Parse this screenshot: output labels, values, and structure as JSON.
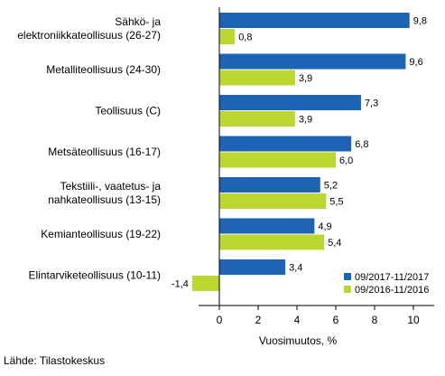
{
  "chart_data": {
    "type": "bar",
    "orientation": "horizontal",
    "categories": [
      [
        "Sähkö- ja",
        "elektroniikkateollisuus (26-27)"
      ],
      [
        "Metalliteollisuus (24-30)"
      ],
      [
        "Teollisuus (C)"
      ],
      [
        "Metsäteollisuus (16-17)"
      ],
      [
        "Tekstiili-, vaatetus- ja",
        "nahkateollisuus (13-15)"
      ],
      [
        "Kemianteollisuus (19-22)"
      ],
      [
        "Elintarviketeollisuus (10-11)"
      ]
    ],
    "series": [
      {
        "name": "09/2017-11/2017",
        "color": "#1f64b4",
        "values": [
          9.8,
          9.6,
          7.3,
          6.8,
          5.2,
          4.9,
          3.4
        ],
        "labels": [
          "9,8",
          "9,6",
          "7,3",
          "6,8",
          "5,2",
          "4,9",
          "3,4"
        ]
      },
      {
        "name": "09/2016-11/2016",
        "color": "#bcd632",
        "values": [
          0.8,
          3.9,
          3.9,
          6.0,
          5.5,
          5.4,
          -1.4
        ],
        "labels": [
          "0,8",
          "3,9",
          "3,9",
          "6,0",
          "5,5",
          "5,4",
          "-1,4"
        ]
      }
    ],
    "xlim": [
      -2,
      12
    ],
    "xticks": [
      0,
      2,
      4,
      6,
      8,
      10
    ],
    "xlabel": "Vuosimuutos, %",
    "ylabel": "",
    "title": "",
    "grid": false,
    "legend_position": "bottom-right"
  },
  "source": "Lähde: Tilastokeskus"
}
